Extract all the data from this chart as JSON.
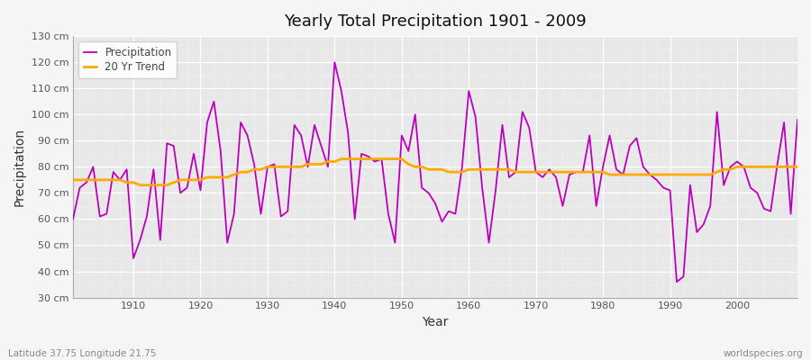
{
  "title": "Yearly Total Precipitation 1901 - 2009",
  "xlabel": "Year",
  "ylabel": "Precipitation",
  "lat_lon_label": "Latitude 37.75 Longitude 21.75",
  "source_label": "worldspecies.org",
  "ylim": [
    30,
    130
  ],
  "yticks": [
    30,
    40,
    50,
    60,
    70,
    80,
    90,
    100,
    110,
    120,
    130
  ],
  "ytick_labels": [
    "30 cm",
    "40 cm",
    "50 cm",
    "60 cm",
    "70 cm",
    "80 cm",
    "90 cm",
    "100 cm",
    "110 cm",
    "120 cm",
    "130 cm"
  ],
  "xlim": [
    1901,
    2009
  ],
  "fig_bg_color": "#f5f5f5",
  "plot_bg_color": "#e8e8e8",
  "precip_color": "#bb00bb",
  "trend_color": "#ffaa00",
  "precip_linewidth": 1.3,
  "trend_linewidth": 2.0,
  "years": [
    1901,
    1902,
    1903,
    1904,
    1905,
    1906,
    1907,
    1908,
    1909,
    1910,
    1911,
    1912,
    1913,
    1914,
    1915,
    1916,
    1917,
    1918,
    1919,
    1920,
    1921,
    1922,
    1923,
    1924,
    1925,
    1926,
    1927,
    1928,
    1929,
    1930,
    1931,
    1932,
    1933,
    1934,
    1935,
    1936,
    1937,
    1938,
    1939,
    1940,
    1941,
    1942,
    1943,
    1944,
    1945,
    1946,
    1947,
    1948,
    1949,
    1950,
    1951,
    1952,
    1953,
    1954,
    1955,
    1956,
    1957,
    1958,
    1959,
    1960,
    1961,
    1962,
    1963,
    1964,
    1965,
    1966,
    1967,
    1968,
    1969,
    1970,
    1971,
    1972,
    1973,
    1974,
    1975,
    1976,
    1977,
    1978,
    1979,
    1980,
    1981,
    1982,
    1983,
    1984,
    1985,
    1986,
    1987,
    1988,
    1989,
    1990,
    1991,
    1992,
    1993,
    1994,
    1995,
    1996,
    1997,
    1998,
    1999,
    2000,
    2001,
    2002,
    2003,
    2004,
    2005,
    2006,
    2007,
    2008,
    2009
  ],
  "precip": [
    60,
    72,
    74,
    80,
    61,
    62,
    78,
    75,
    79,
    45,
    52,
    61,
    79,
    52,
    89,
    88,
    70,
    72,
    85,
    71,
    97,
    105,
    86,
    51,
    62,
    97,
    92,
    81,
    62,
    80,
    81,
    61,
    63,
    96,
    92,
    80,
    96,
    88,
    80,
    120,
    109,
    93,
    60,
    85,
    84,
    82,
    83,
    62,
    51,
    92,
    86,
    100,
    72,
    70,
    66,
    59,
    63,
    62,
    80,
    109,
    99,
    72,
    51,
    71,
    96,
    76,
    78,
    101,
    95,
    78,
    76,
    79,
    76,
    65,
    77,
    78,
    78,
    92,
    65,
    80,
    92,
    79,
    77,
    88,
    91,
    80,
    77,
    75,
    72,
    71,
    36,
    38,
    73,
    55,
    58,
    65,
    101,
    73,
    80,
    82,
    80,
    72,
    70,
    64,
    63,
    81,
    97,
    62,
    98
  ],
  "trend": [
    75,
    75,
    75,
    75,
    75,
    75,
    75,
    75,
    74,
    74,
    73,
    73,
    73,
    73,
    73,
    74,
    75,
    75,
    75,
    75,
    76,
    76,
    76,
    76,
    77,
    78,
    78,
    79,
    79,
    80,
    80,
    80,
    80,
    80,
    80,
    81,
    81,
    81,
    82,
    82,
    83,
    83,
    83,
    83,
    83,
    83,
    83,
    83,
    83,
    83,
    81,
    80,
    80,
    79,
    79,
    79,
    78,
    78,
    78,
    79,
    79,
    79,
    79,
    79,
    79,
    79,
    78,
    78,
    78,
    78,
    78,
    78,
    78,
    78,
    78,
    78,
    78,
    78,
    78,
    78,
    77,
    77,
    77,
    77,
    77,
    77,
    77,
    77,
    77,
    77,
    77,
    77,
    77,
    77,
    77,
    77,
    78,
    79,
    79,
    80,
    80,
    80,
    80,
    80,
    80,
    80,
    80,
    80,
    80
  ]
}
